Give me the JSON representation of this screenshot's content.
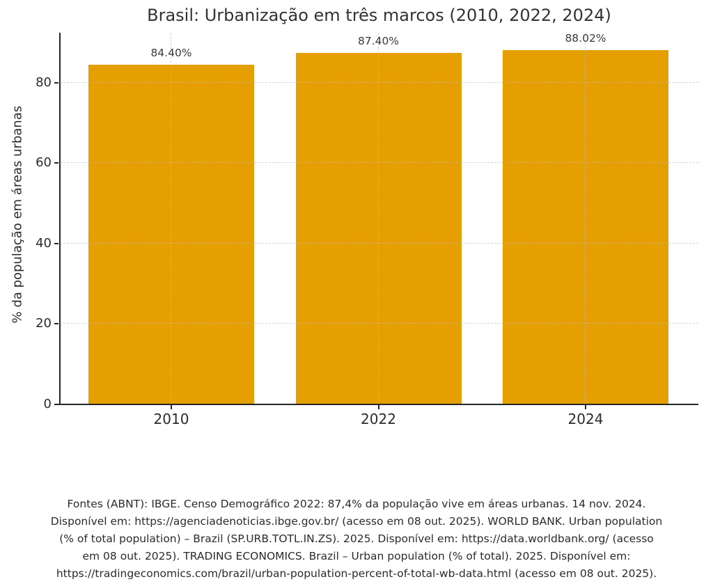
{
  "page": {
    "background": "#ffffff",
    "text_color": "#2b2b2b"
  },
  "chart_data": {
    "type": "bar",
    "title": "Brasil: Urbanização em três marcos (2010, 2022, 2024)",
    "categories": [
      "2010",
      "2022",
      "2024"
    ],
    "values": [
      84.4,
      87.4,
      88.02
    ],
    "bar_labels": [
      "84.40%",
      "87.40%",
      "88.02%"
    ],
    "xlabel": "",
    "ylabel": "% da população em áreas urbanas",
    "ylim": [
      0,
      92.4
    ],
    "yticks": [
      0,
      20,
      40,
      60,
      80
    ],
    "bar_color": "#E69F00",
    "grid": "dashed, horizontal at yticks and vertical at bar centers, drawn over bars",
    "legend_position": "none"
  },
  "footer": {
    "lines": [
      "Fontes (ABNT): IBGE. Censo Demográfico 2022: 87,4% da população vive em áreas urbanas. 14 nov. 2024.",
      "Disponível em: https://agenciadenoticias.ibge.gov.br/ (acesso em 08 out. 2025). WORLD BANK. Urban population",
      "(% of total population) – Brazil (SP.URB.TOTL.IN.ZS). 2025. Disponível em: https://data.worldbank.org/ (acesso",
      "em 08 out. 2025). TRADING ECONOMICS. Brazil – Urban population (% of total). 2025. Disponível em:",
      "https://tradingeconomics.com/brazil/urban-population-percent-of-total-wb-data.html (acesso em 08 out. 2025)."
    ]
  }
}
